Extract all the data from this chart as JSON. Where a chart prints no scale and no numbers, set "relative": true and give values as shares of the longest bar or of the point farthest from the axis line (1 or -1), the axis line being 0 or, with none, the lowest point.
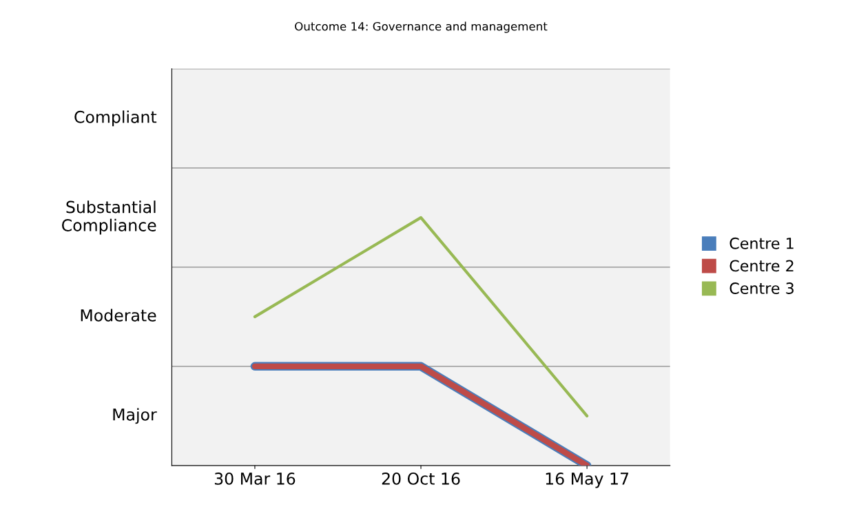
{
  "chart_data": {
    "type": "line",
    "title": "Outcome 14: Governance and management",
    "categories": [
      "30 Mar 16",
      "20 Oct 16",
      "16 May 17"
    ],
    "relative": true,
    "series": [
      {
        "name": "Centre 1",
        "color": "#4a7ebb",
        "values": [
          0.4,
          0.4,
          0
        ]
      },
      {
        "name": "Centre 2",
        "color": "#be4b48",
        "values": [
          0.4,
          0.4,
          0
        ]
      },
      {
        "name": "Centre 3",
        "color": "#98b954",
        "values": [
          0.6,
          1,
          0.2
        ]
      }
    ],
    "annotations": [
      "Compliant",
      "Substantial\nCompliance",
      "Moderate",
      "Major"
    ],
    "ref_lines": [
      {
        "axis": "y",
        "value": 0.4,
        "color": "#888888"
      },
      {
        "axis": "y",
        "value": 0.8,
        "color": "#888888"
      },
      {
        "axis": "y",
        "value": 1.2,
        "color": "#888888"
      },
      {
        "axis": "y",
        "value": 1.6,
        "color": "#888888"
      }
    ],
    "legend": "right",
    "marker": "none",
    "line_style": "solid"
  }
}
